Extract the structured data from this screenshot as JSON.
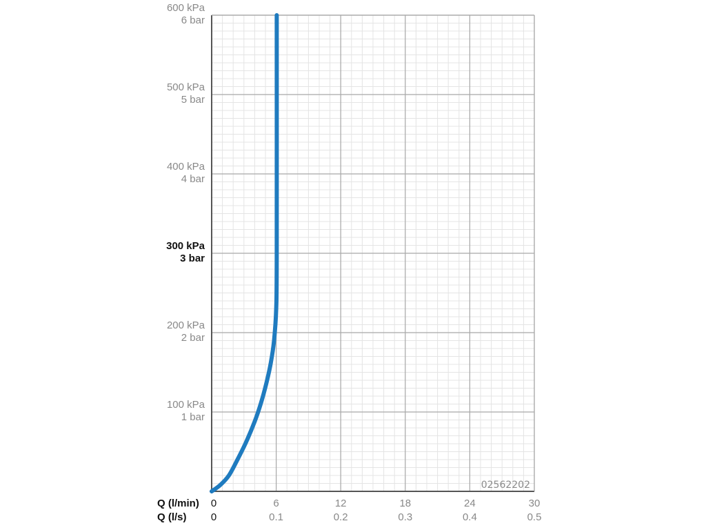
{
  "chart_data": {
    "type": "line",
    "title": "",
    "xlabel": "Q (l/min)",
    "xlabel_secondary": "Q (l/s)",
    "xlim": [
      0,
      30
    ],
    "ylim": [
      0,
      600
    ],
    "grid": true,
    "x_ticks": [
      {
        "value": 0,
        "primary": "0",
        "secondary": "0"
      },
      {
        "value": 6,
        "primary": "6",
        "secondary": "0.1"
      },
      {
        "value": 12,
        "primary": "12",
        "secondary": "0.2"
      },
      {
        "value": 18,
        "primary": "18",
        "secondary": "0.3"
      },
      {
        "value": 24,
        "primary": "24",
        "secondary": "0.4"
      },
      {
        "value": 30,
        "primary": "30",
        "secondary": "0.5"
      }
    ],
    "y_ticks": [
      {
        "value": 100,
        "kpa": "100 kPa",
        "bar": "1 bar",
        "bold": false
      },
      {
        "value": 200,
        "kpa": "200 kPa",
        "bar": "2 bar",
        "bold": false
      },
      {
        "value": 300,
        "kpa": "300 kPa",
        "bar": "3 bar",
        "bold": true
      },
      {
        "value": 400,
        "kpa": "400 kPa",
        "bar": "4 bar",
        "bold": false
      },
      {
        "value": 500,
        "kpa": "500 kPa",
        "bar": "5 bar",
        "bold": false
      },
      {
        "value": 600,
        "kpa": "600 kPa",
        "bar": "6 bar",
        "bold": false
      }
    ],
    "series": [
      {
        "color": "#1f7bbf",
        "x": [
          0,
          0.8,
          1.6,
          2.4,
          3.2,
          4.0,
          4.6,
          5.1,
          5.5,
          5.8,
          6.0,
          6.05,
          6.05
        ],
        "y": [
          0,
          8,
          20,
          40,
          62,
          88,
          112,
          137,
          162,
          190,
          230,
          300,
          600
        ]
      }
    ],
    "annotations": [
      {
        "text": "02562202",
        "position": "bottom-right"
      }
    ]
  }
}
